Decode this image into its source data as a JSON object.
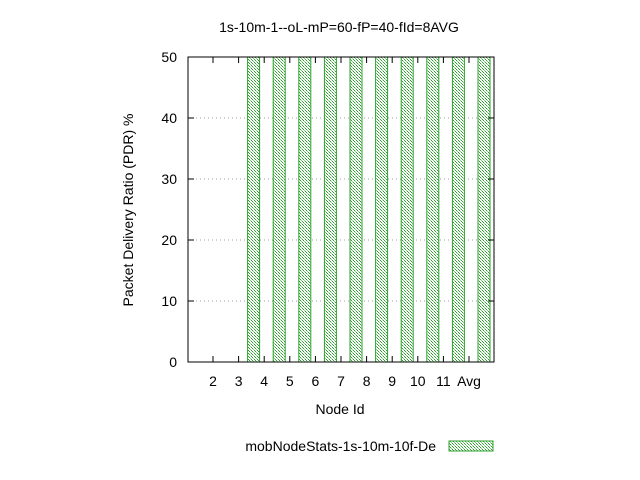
{
  "chart_data": {
    "type": "bar",
    "title": "1s-10m-1--oL-mP=60-fP=40-fId=8AVG",
    "xlabel": "Node Id",
    "ylabel": "Packet Delivery Ratio (PDR) %",
    "categories": [
      "2",
      "3",
      "4",
      "5",
      "6",
      "7",
      "8",
      "9",
      "10",
      "11",
      "Avg"
    ],
    "series": [
      {
        "name": "mobNodeStats-1s-10m-10f-De",
        "values": [
          0,
          50,
          50,
          50,
          50,
          50,
          50,
          50,
          50,
          50,
          50
        ],
        "color": "#2ca02c"
      }
    ],
    "ylim": [
      0,
      50
    ],
    "yticks": [
      0,
      10,
      20,
      30,
      40,
      50
    ],
    "grid": true,
    "legend_position": "bottom"
  }
}
